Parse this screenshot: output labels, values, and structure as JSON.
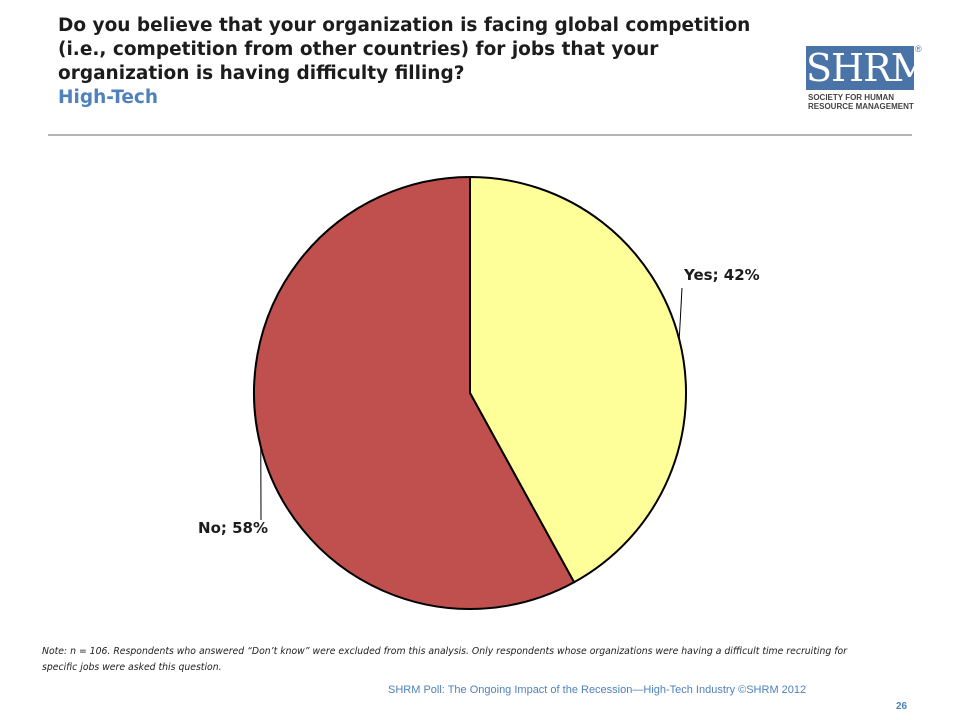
{
  "header": {
    "question": "Do you believe that your organization is facing global competition (i.e., competition from other countries) for jobs that your organization is having difficulty filling?",
    "subtitle": "High-Tech"
  },
  "logo": {
    "mark": "SHRM",
    "registered": "®",
    "tagline_lines": [
      "SOCIETY FOR HUMAN",
      "RESOURCE MANAGEMENT"
    ]
  },
  "chart_data": {
    "type": "pie",
    "slices": [
      {
        "label": "Yes",
        "value": 42,
        "display": "Yes; 42%",
        "color": "#ffff99"
      },
      {
        "label": "No",
        "value": 58,
        "display": "No; 58%",
        "color": "#c0504d"
      }
    ],
    "start": "12 o'clock",
    "direction": "clockwise",
    "border_color": "#000000"
  },
  "note": "Note: n = 106. Respondents who answered “Don’t know” were excluded from this analysis. Only respondents whose organizations were having a difficult time recruiting for specific jobs were asked this question.",
  "footer": {
    "text": "SHRM Poll: The Ongoing Impact of the Recession—High-Tech Industry ©SHRM 2012",
    "page": "26"
  }
}
